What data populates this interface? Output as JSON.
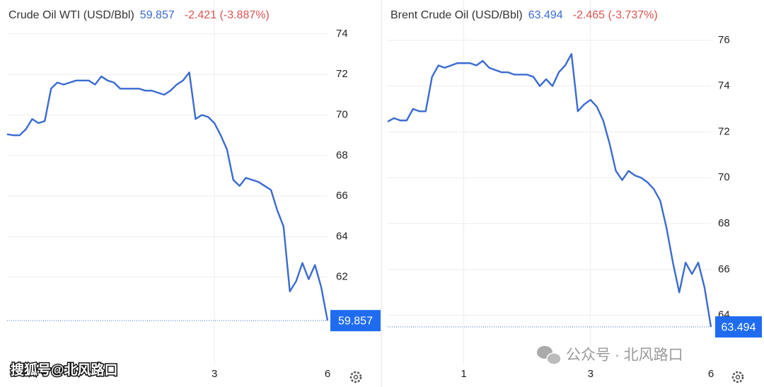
{
  "chart_data": [
    {
      "type": "line",
      "title": "Crude Oil WTI (USD/Bbl)",
      "change": "-2.421 (-3.887%)",
      "color": "#3a6bd0",
      "categories": [
        null,
        null,
        null,
        null,
        null,
        null,
        null,
        null,
        null,
        null,
        null,
        null,
        null,
        null,
        null,
        null,
        null,
        null,
        null,
        null,
        null,
        null,
        null,
        null,
        null,
        null,
        null,
        null,
        null,
        null,
        null,
        null,
        null,
        "3",
        null,
        null,
        null,
        null,
        null,
        null,
        null,
        null,
        null,
        null,
        null,
        null,
        null,
        null,
        null,
        null,
        null,
        "6"
      ],
      "values": [
        69.05,
        69.0,
        69.0,
        69.3,
        69.8,
        69.6,
        69.7,
        71.3,
        71.6,
        71.5,
        71.6,
        71.7,
        71.7,
        71.7,
        71.5,
        71.9,
        71.7,
        71.6,
        71.3,
        71.3,
        71.3,
        71.3,
        71.2,
        71.2,
        71.1,
        71.0,
        71.2,
        71.5,
        71.7,
        72.1,
        69.8,
        70.0,
        69.9,
        69.6,
        69.0,
        68.3,
        66.8,
        66.5,
        66.9,
        66.8,
        66.7,
        66.5,
        66.3,
        65.3,
        64.5,
        61.3,
        61.8,
        62.7,
        61.9,
        62.6,
        61.5,
        59.857
      ],
      "ylim": [
        57.7,
        74.45
      ],
      "yticks": [
        62,
        64,
        66,
        68,
        70,
        72,
        74
      ],
      "grid": true
    },
    {
      "type": "line",
      "title": "Brent Crude Oil (USD/Bbl)",
      "change": "-2.465 (-3.737%)",
      "color": "#3a6bd0",
      "categories": [
        null,
        null,
        null,
        null,
        null,
        null,
        null,
        null,
        null,
        null,
        null,
        null,
        "1",
        null,
        null,
        null,
        null,
        null,
        null,
        null,
        null,
        null,
        null,
        null,
        null,
        null,
        null,
        null,
        null,
        null,
        null,
        null,
        "3",
        null,
        null,
        null,
        null,
        null,
        null,
        null,
        null,
        null,
        null,
        null,
        null,
        null,
        null,
        null,
        null,
        null,
        null,
        "6"
      ],
      "values": [
        72.45,
        72.6,
        72.5,
        72.5,
        73.0,
        72.9,
        72.9,
        74.4,
        74.9,
        74.8,
        74.9,
        75.0,
        75.0,
        75.0,
        74.9,
        75.1,
        74.8,
        74.7,
        74.6,
        74.6,
        74.5,
        74.5,
        74.5,
        74.4,
        74.0,
        74.3,
        74.0,
        74.6,
        74.9,
        75.4,
        72.9,
        73.2,
        73.4,
        73.1,
        72.5,
        71.5,
        70.3,
        69.9,
        70.3,
        70.1,
        70.0,
        69.8,
        69.5,
        69.0,
        67.8,
        66.3,
        65.0,
        66.3,
        65.8,
        66.3,
        65.2,
        63.494
      ],
      "ylim": [
        61.86,
        76.52
      ],
      "yticks": [
        64,
        66,
        68,
        70,
        72,
        74,
        76
      ],
      "grid": true
    }
  ],
  "watermarks": [
    "搜狐号@北风路口",
    "公众号 · 北风路口"
  ]
}
